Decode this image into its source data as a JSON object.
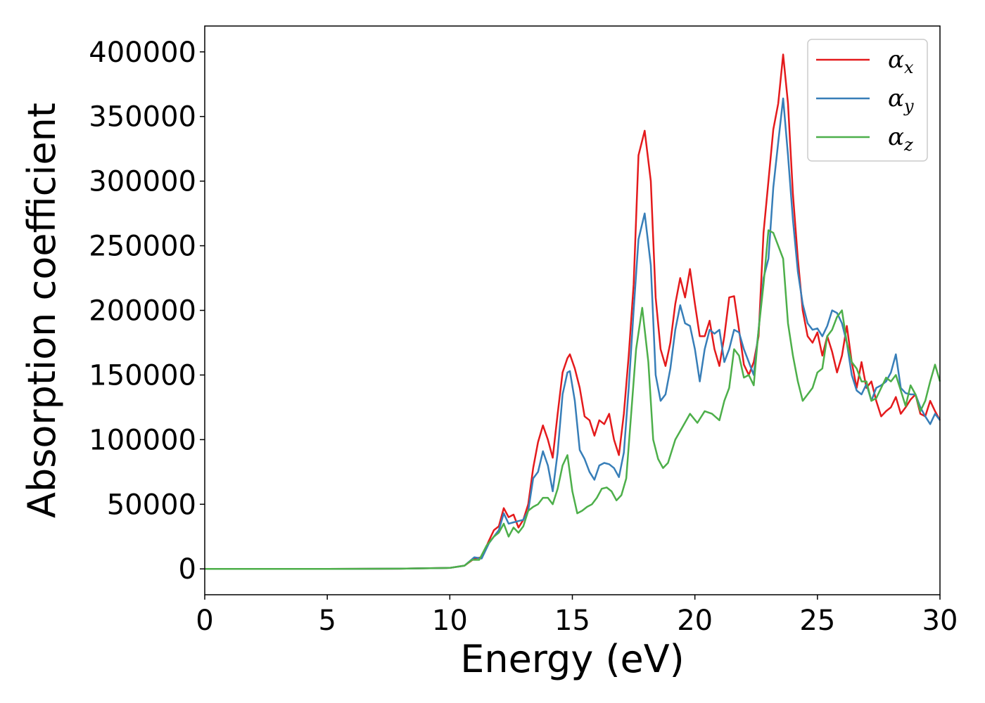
{
  "chart_data": {
    "type": "line",
    "xlabel": "Energy (eV)",
    "ylabel": "Absorption coefficient",
    "xlim": [
      0,
      30
    ],
    "ylim": [
      -20000,
      420000
    ],
    "x_ticks": [
      "0",
      "5",
      "10",
      "15",
      "20",
      "25",
      "30"
    ],
    "y_ticks": [
      "0",
      "50000",
      "100000",
      "150000",
      "200000",
      "250000",
      "300000",
      "350000",
      "400000"
    ],
    "grid": false,
    "legend_position": "top-right",
    "series": [
      {
        "name": "αx",
        "symbol": "α",
        "subscript": "x",
        "color": "#e41a1c",
        "points": [
          [
            0,
            0
          ],
          [
            5,
            0
          ],
          [
            8,
            200
          ],
          [
            10,
            800
          ],
          [
            10.6,
            2500
          ],
          [
            11,
            8000
          ],
          [
            11.3,
            9000
          ],
          [
            11.6,
            22000
          ],
          [
            11.8,
            30000
          ],
          [
            12,
            33000
          ],
          [
            12.2,
            47000
          ],
          [
            12.4,
            40000
          ],
          [
            12.6,
            42000
          ],
          [
            12.8,
            32000
          ],
          [
            13,
            38000
          ],
          [
            13.2,
            50000
          ],
          [
            13.4,
            78000
          ],
          [
            13.6,
            98000
          ],
          [
            13.8,
            111000
          ],
          [
            14,
            100000
          ],
          [
            14.2,
            86000
          ],
          [
            14.4,
            120000
          ],
          [
            14.6,
            152000
          ],
          [
            14.8,
            163000
          ],
          [
            14.9,
            166000
          ],
          [
            15.1,
            155000
          ],
          [
            15.3,
            140000
          ],
          [
            15.5,
            118000
          ],
          [
            15.7,
            115000
          ],
          [
            15.9,
            103000
          ],
          [
            16.1,
            115000
          ],
          [
            16.3,
            112000
          ],
          [
            16.5,
            120000
          ],
          [
            16.7,
            100000
          ],
          [
            16.9,
            88000
          ],
          [
            17.1,
            120000
          ],
          [
            17.3,
            165000
          ],
          [
            17.5,
            220000
          ],
          [
            17.7,
            320000
          ],
          [
            17.95,
            339000
          ],
          [
            18.2,
            300000
          ],
          [
            18.4,
            210000
          ],
          [
            18.6,
            170000
          ],
          [
            18.8,
            157000
          ],
          [
            19,
            175000
          ],
          [
            19.2,
            205000
          ],
          [
            19.4,
            225000
          ],
          [
            19.6,
            210000
          ],
          [
            19.8,
            232000
          ],
          [
            20,
            205000
          ],
          [
            20.2,
            180000
          ],
          [
            20.4,
            180000
          ],
          [
            20.6,
            192000
          ],
          [
            20.8,
            170000
          ],
          [
            21,
            157000
          ],
          [
            21.2,
            180000
          ],
          [
            21.4,
            210000
          ],
          [
            21.6,
            211000
          ],
          [
            21.8,
            185000
          ],
          [
            22,
            158000
          ],
          [
            22.2,
            150000
          ],
          [
            22.4,
            160000
          ],
          [
            22.6,
            180000
          ],
          [
            22.8,
            260000
          ],
          [
            23,
            300000
          ],
          [
            23.2,
            340000
          ],
          [
            23.4,
            360000
          ],
          [
            23.6,
            398000
          ],
          [
            23.8,
            360000
          ],
          [
            24,
            290000
          ],
          [
            24.2,
            240000
          ],
          [
            24.4,
            200000
          ],
          [
            24.6,
            180000
          ],
          [
            24.8,
            175000
          ],
          [
            25,
            183000
          ],
          [
            25.2,
            165000
          ],
          [
            25.4,
            180000
          ],
          [
            25.6,
            168000
          ],
          [
            25.8,
            152000
          ],
          [
            26,
            165000
          ],
          [
            26.2,
            188000
          ],
          [
            26.4,
            160000
          ],
          [
            26.6,
            140000
          ],
          [
            26.8,
            160000
          ],
          [
            27,
            140000
          ],
          [
            27.2,
            145000
          ],
          [
            27.4,
            130000
          ],
          [
            27.6,
            118000
          ],
          [
            27.8,
            122000
          ],
          [
            28,
            125000
          ],
          [
            28.2,
            133000
          ],
          [
            28.4,
            120000
          ],
          [
            28.6,
            125000
          ],
          [
            28.8,
            131000
          ],
          [
            29,
            135000
          ],
          [
            29.2,
            120000
          ],
          [
            29.4,
            118000
          ],
          [
            29.6,
            130000
          ],
          [
            29.8,
            122000
          ],
          [
            30,
            115000
          ]
        ]
      },
      {
        "name": "αy",
        "symbol": "α",
        "subscript": "y",
        "color": "#377eb8",
        "points": [
          [
            0,
            0
          ],
          [
            5,
            0
          ],
          [
            8,
            200
          ],
          [
            10,
            800
          ],
          [
            10.6,
            2500
          ],
          [
            11,
            9000
          ],
          [
            11.3,
            8000
          ],
          [
            11.6,
            20000
          ],
          [
            11.8,
            25000
          ],
          [
            12,
            30000
          ],
          [
            12.2,
            43000
          ],
          [
            12.4,
            35000
          ],
          [
            12.6,
            36000
          ],
          [
            12.8,
            37000
          ],
          [
            13,
            38000
          ],
          [
            13.2,
            45000
          ],
          [
            13.4,
            70000
          ],
          [
            13.6,
            75000
          ],
          [
            13.8,
            91000
          ],
          [
            14,
            80000
          ],
          [
            14.2,
            60000
          ],
          [
            14.4,
            90000
          ],
          [
            14.6,
            135000
          ],
          [
            14.8,
            152000
          ],
          [
            14.9,
            153000
          ],
          [
            15.1,
            130000
          ],
          [
            15.3,
            92000
          ],
          [
            15.5,
            85000
          ],
          [
            15.7,
            75000
          ],
          [
            15.9,
            69000
          ],
          [
            16.1,
            80000
          ],
          [
            16.3,
            82000
          ],
          [
            16.5,
            81000
          ],
          [
            16.7,
            78000
          ],
          [
            16.9,
            71000
          ],
          [
            17.1,
            90000
          ],
          [
            17.3,
            140000
          ],
          [
            17.5,
            200000
          ],
          [
            17.7,
            255000
          ],
          [
            17.95,
            275000
          ],
          [
            18.2,
            235000
          ],
          [
            18.4,
            150000
          ],
          [
            18.6,
            130000
          ],
          [
            18.8,
            135000
          ],
          [
            19,
            155000
          ],
          [
            19.2,
            185000
          ],
          [
            19.4,
            204000
          ],
          [
            19.6,
            190000
          ],
          [
            19.8,
            188000
          ],
          [
            20,
            170000
          ],
          [
            20.2,
            145000
          ],
          [
            20.4,
            170000
          ],
          [
            20.6,
            185000
          ],
          [
            20.8,
            182000
          ],
          [
            21,
            185000
          ],
          [
            21.2,
            160000
          ],
          [
            21.4,
            170000
          ],
          [
            21.6,
            185000
          ],
          [
            21.8,
            183000
          ],
          [
            22,
            170000
          ],
          [
            22.2,
            160000
          ],
          [
            22.4,
            150000
          ],
          [
            22.6,
            185000
          ],
          [
            22.8,
            225000
          ],
          [
            23,
            240000
          ],
          [
            23.2,
            295000
          ],
          [
            23.4,
            330000
          ],
          [
            23.6,
            364000
          ],
          [
            23.8,
            320000
          ],
          [
            24,
            270000
          ],
          [
            24.2,
            230000
          ],
          [
            24.4,
            205000
          ],
          [
            24.6,
            190000
          ],
          [
            24.8,
            185000
          ],
          [
            25,
            186000
          ],
          [
            25.2,
            180000
          ],
          [
            25.4,
            188000
          ],
          [
            25.6,
            200000
          ],
          [
            25.8,
            198000
          ],
          [
            26,
            190000
          ],
          [
            26.2,
            175000
          ],
          [
            26.4,
            150000
          ],
          [
            26.6,
            138000
          ],
          [
            26.8,
            135000
          ],
          [
            27,
            143000
          ],
          [
            27.2,
            130000
          ],
          [
            27.4,
            140000
          ],
          [
            27.6,
            142000
          ],
          [
            27.8,
            145000
          ],
          [
            28,
            152000
          ],
          [
            28.2,
            166000
          ],
          [
            28.4,
            140000
          ],
          [
            28.6,
            136000
          ],
          [
            28.8,
            135000
          ],
          [
            29,
            135000
          ],
          [
            29.2,
            125000
          ],
          [
            29.4,
            118000
          ],
          [
            29.6,
            112000
          ],
          [
            29.8,
            120000
          ],
          [
            30,
            115000
          ]
        ]
      },
      {
        "name": "αz",
        "symbol": "α",
        "subscript": "z",
        "color": "#4daf4a",
        "points": [
          [
            0,
            0
          ],
          [
            5,
            0
          ],
          [
            8,
            200
          ],
          [
            10,
            800
          ],
          [
            10.6,
            2500
          ],
          [
            10.9,
            7000
          ],
          [
            11.2,
            7000
          ],
          [
            11.5,
            18000
          ],
          [
            11.8,
            25000
          ],
          [
            12,
            28000
          ],
          [
            12.2,
            35000
          ],
          [
            12.4,
            25000
          ],
          [
            12.6,
            32000
          ],
          [
            12.8,
            28000
          ],
          [
            13,
            33000
          ],
          [
            13.2,
            45000
          ],
          [
            13.4,
            48000
          ],
          [
            13.6,
            50000
          ],
          [
            13.8,
            55000
          ],
          [
            14,
            55000
          ],
          [
            14.2,
            50000
          ],
          [
            14.4,
            62000
          ],
          [
            14.6,
            80000
          ],
          [
            14.8,
            88000
          ],
          [
            15,
            60000
          ],
          [
            15.2,
            43000
          ],
          [
            15.4,
            45000
          ],
          [
            15.6,
            48000
          ],
          [
            15.8,
            50000
          ],
          [
            16,
            55000
          ],
          [
            16.2,
            62000
          ],
          [
            16.4,
            63000
          ],
          [
            16.6,
            60000
          ],
          [
            16.8,
            53000
          ],
          [
            17,
            57000
          ],
          [
            17.2,
            70000
          ],
          [
            17.4,
            120000
          ],
          [
            17.6,
            170000
          ],
          [
            17.85,
            202000
          ],
          [
            18.1,
            160000
          ],
          [
            18.3,
            100000
          ],
          [
            18.5,
            85000
          ],
          [
            18.7,
            78000
          ],
          [
            18.9,
            82000
          ],
          [
            19.2,
            100000
          ],
          [
            19.5,
            110000
          ],
          [
            19.8,
            120000
          ],
          [
            20.1,
            113000
          ],
          [
            20.4,
            122000
          ],
          [
            20.7,
            120000
          ],
          [
            21,
            115000
          ],
          [
            21.2,
            130000
          ],
          [
            21.4,
            140000
          ],
          [
            21.6,
            170000
          ],
          [
            21.8,
            165000
          ],
          [
            22,
            148000
          ],
          [
            22.2,
            150000
          ],
          [
            22.4,
            142000
          ],
          [
            22.6,
            185000
          ],
          [
            22.8,
            220000
          ],
          [
            23,
            262000
          ],
          [
            23.2,
            260000
          ],
          [
            23.4,
            250000
          ],
          [
            23.6,
            240000
          ],
          [
            23.8,
            190000
          ],
          [
            24,
            165000
          ],
          [
            24.2,
            145000
          ],
          [
            24.4,
            130000
          ],
          [
            24.6,
            135000
          ],
          [
            24.8,
            140000
          ],
          [
            25,
            152000
          ],
          [
            25.2,
            155000
          ],
          [
            25.4,
            180000
          ],
          [
            25.6,
            185000
          ],
          [
            25.8,
            195000
          ],
          [
            26,
            200000
          ],
          [
            26.2,
            175000
          ],
          [
            26.4,
            160000
          ],
          [
            26.6,
            155000
          ],
          [
            26.8,
            145000
          ],
          [
            27,
            145000
          ],
          [
            27.2,
            130000
          ],
          [
            27.4,
            132000
          ],
          [
            27.6,
            140000
          ],
          [
            27.8,
            148000
          ],
          [
            28,
            145000
          ],
          [
            28.2,
            150000
          ],
          [
            28.4,
            138000
          ],
          [
            28.6,
            126000
          ],
          [
            28.8,
            142000
          ],
          [
            29,
            135000
          ],
          [
            29.2,
            122000
          ],
          [
            29.4,
            130000
          ],
          [
            29.6,
            145000
          ],
          [
            29.8,
            158000
          ],
          [
            30,
            145000
          ]
        ]
      }
    ]
  }
}
